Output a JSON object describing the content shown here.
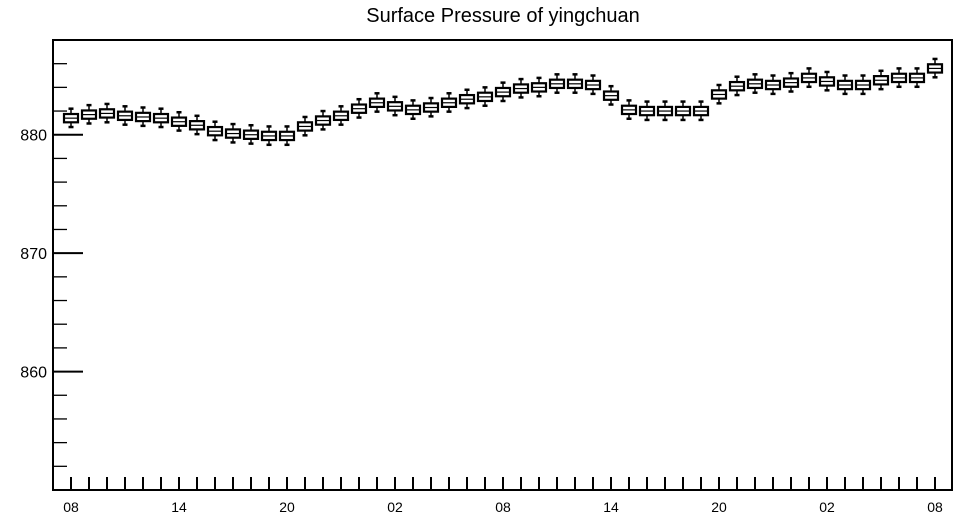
{
  "chart_data": {
    "type": "box",
    "title": "Surface Pressure of yingchuan",
    "xlabel": "",
    "ylabel": "",
    "ylim": [
      850,
      888
    ],
    "y_major_ticks": [
      860,
      870,
      880
    ],
    "y_minor_step": 2,
    "x_count": 49,
    "x_tick_labels": [
      {
        "index": 0,
        "label": "08"
      },
      {
        "index": 6,
        "label": "14"
      },
      {
        "index": 12,
        "label": "20"
      },
      {
        "index": 18,
        "label": "02"
      },
      {
        "index": 24,
        "label": "08"
      },
      {
        "index": 30,
        "label": "14"
      },
      {
        "index": 36,
        "label": "20"
      },
      {
        "index": 42,
        "label": "02"
      },
      {
        "index": 48,
        "label": "08"
      }
    ],
    "grid": false,
    "median": [
      881.4,
      881.7,
      881.8,
      881.6,
      881.5,
      881.4,
      881.1,
      880.8,
      880.3,
      880.1,
      880.0,
      879.9,
      879.9,
      880.7,
      881.2,
      881.6,
      882.2,
      882.7,
      882.4,
      882.1,
      882.3,
      882.7,
      883.0,
      883.2,
      883.6,
      883.9,
      884.0,
      884.3,
      884.3,
      884.2,
      883.3,
      882.1,
      882.0,
      882.0,
      882.0,
      882.0,
      883.4,
      884.1,
      884.3,
      884.2,
      884.4,
      884.8,
      884.5,
      884.2,
      884.2,
      884.6,
      884.8,
      884.8,
      885.6
    ]
  }
}
